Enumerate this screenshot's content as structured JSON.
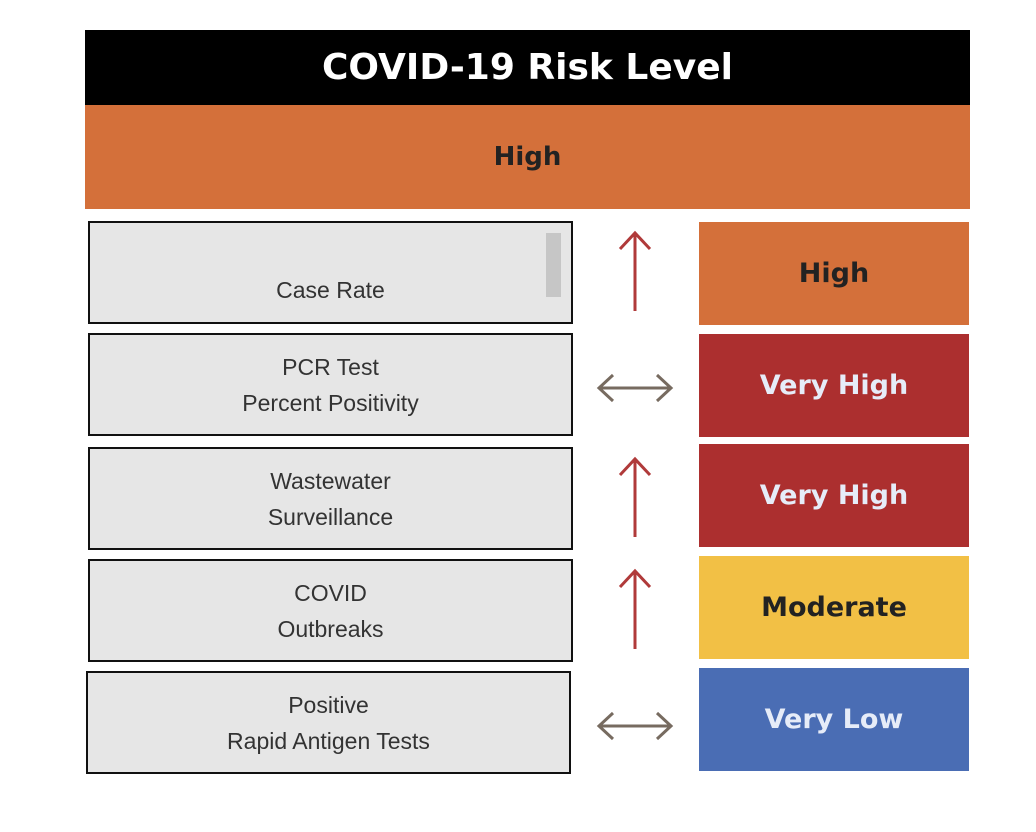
{
  "title": "COVID-19 Risk Level",
  "overall_level": {
    "label": "High",
    "color": "#D4703A"
  },
  "colors": {
    "up_arrow": "#B03A3A",
    "steady_arrow": "#776B60"
  },
  "metrics": [
    {
      "lines": [
        "Case Rate"
      ],
      "trend": "up-arrow",
      "level": "High",
      "color": "#D4703A",
      "text_color": "#222222"
    },
    {
      "lines": [
        "PCR Test",
        "Percent Positivity"
      ],
      "trend": "left-right-arrow",
      "level": "Very High",
      "color": "#AC2F2F",
      "text_color": "#E6ECF8"
    },
    {
      "lines": [
        "Wastewater",
        "Surveillance"
      ],
      "trend": "up-arrow",
      "level": "Very High",
      "color": "#AC2F2F",
      "text_color": "#E6ECF8"
    },
    {
      "lines": [
        "COVID",
        "Outbreaks"
      ],
      "trend": "up-arrow",
      "level": "Moderate",
      "color": "#F2C045",
      "text_color": "#222222"
    },
    {
      "lines": [
        "Positive",
        "Rapid Antigen Tests"
      ],
      "trend": "left-right-arrow",
      "level": "Very Low",
      "color": "#4A6DB4",
      "text_color": "#E6ECF8"
    }
  ]
}
